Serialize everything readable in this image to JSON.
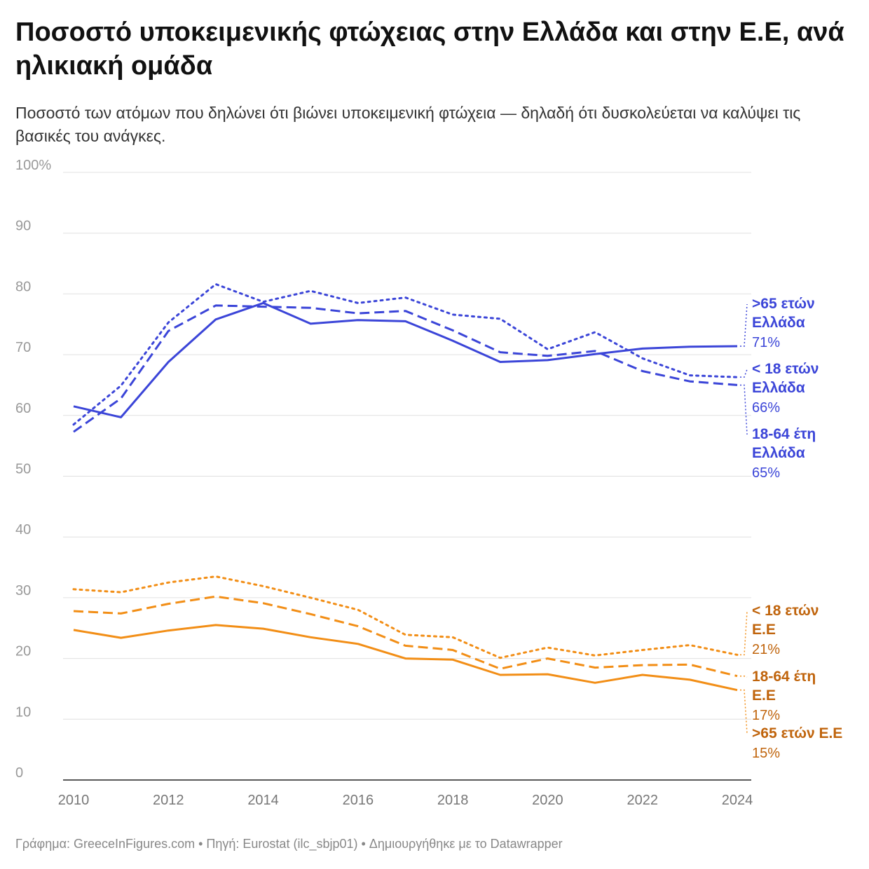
{
  "title": "Ποσοστό υποκειμενικής φτώχειας στην Ελλάδα και στην Ε.Ε, ανά ηλικιακή ομάδα",
  "subtitle": "Ποσοστό των ατόμων που δηλώνει ότι βιώνει υποκειμενική φτώχεια — δηλαδή ότι δυσκολεύεται να καλύψει τις βασικές του ανάγκες.",
  "footer": "Γράφημα: GreeceInFigures.com • Πηγή: Eurostat (ilc_sbjp01)  • Δημιουργήθηκε με το Datawrapper",
  "colors": {
    "greece": "#3b45d8",
    "eu": "#f28e16",
    "eu_label": "#c0640c",
    "grid": "#e0e0e0",
    "tick": "#999999"
  },
  "chart_data": {
    "type": "line",
    "x": [
      2010,
      2011,
      2012,
      2013,
      2014,
      2015,
      2016,
      2017,
      2018,
      2019,
      2020,
      2021,
      2022,
      2023,
      2024
    ],
    "xticks": [
      2010,
      2012,
      2014,
      2016,
      2018,
      2020,
      2022,
      2024
    ],
    "xtick_labels": [
      "2010",
      "2012",
      "2014",
      "2016",
      "2018",
      "2020",
      "2022",
      "2024"
    ],
    "ylim": [
      0,
      100
    ],
    "yticks": [
      0,
      10,
      20,
      30,
      40,
      50,
      60,
      70,
      80,
      90,
      100
    ],
    "ytick_labels": [
      "0",
      "10",
      "20",
      "30",
      "40",
      "50",
      "60",
      "70",
      "80",
      "90",
      "100%"
    ],
    "grid": true,
    "series": [
      {
        "id": "gr_65",
        "name_line1": ">65 ετών",
        "name_line2": "Ελλάδα",
        "end_label": "71%",
        "group": "greece",
        "style": "solid",
        "values": [
          61.5,
          59.7,
          68.8,
          75.8,
          78.5,
          75.1,
          75.7,
          75.5,
          72.3,
          68.8,
          69.1,
          70.1,
          71.0,
          71.3,
          71.4
        ]
      },
      {
        "id": "gr_u18",
        "name_line1": "< 18 ετών",
        "name_line2": "Ελλάδα",
        "end_label": "66%",
        "group": "greece",
        "style": "dotted",
        "values": [
          58.5,
          64.9,
          75.3,
          81.6,
          78.7,
          80.5,
          78.5,
          79.4,
          76.6,
          75.9,
          70.9,
          73.7,
          69.4,
          66.6,
          66.3
        ]
      },
      {
        "id": "gr_18_64",
        "name_line1": "18-64 έτη",
        "name_line2": "Ελλάδα",
        "end_label": "65%",
        "group": "greece",
        "style": "dashed",
        "values": [
          57.3,
          62.8,
          73.9,
          78.1,
          77.9,
          77.7,
          76.8,
          77.2,
          74.0,
          70.4,
          69.8,
          70.6,
          67.3,
          65.6,
          65.0
        ]
      },
      {
        "id": "eu_u18",
        "name_line1": "< 18 ετών",
        "name_line2": "Ε.Ε",
        "end_label": "21%",
        "group": "eu",
        "style": "dotted",
        "values": [
          31.4,
          30.9,
          32.5,
          33.5,
          31.9,
          30.0,
          28.0,
          23.9,
          23.5,
          20.1,
          21.8,
          20.5,
          21.4,
          22.2,
          20.6
        ]
      },
      {
        "id": "eu_18_64",
        "name_line1": "18-64 έτη",
        "name_line2": "Ε.Ε",
        "end_label": "17%",
        "group": "eu",
        "style": "dashed",
        "values": [
          27.8,
          27.4,
          29.0,
          30.2,
          29.1,
          27.3,
          25.3,
          22.1,
          21.4,
          18.3,
          20.0,
          18.5,
          18.9,
          19.0,
          17.1
        ]
      },
      {
        "id": "eu_65",
        "name_line1": ">65 ετών Ε.Ε",
        "name_line2": "",
        "end_label": "15%",
        "group": "eu",
        "style": "solid",
        "values": [
          24.7,
          23.4,
          24.6,
          25.5,
          24.9,
          23.5,
          22.4,
          20.0,
          19.8,
          17.3,
          17.4,
          16.0,
          17.3,
          16.5,
          14.8
        ]
      }
    ]
  }
}
